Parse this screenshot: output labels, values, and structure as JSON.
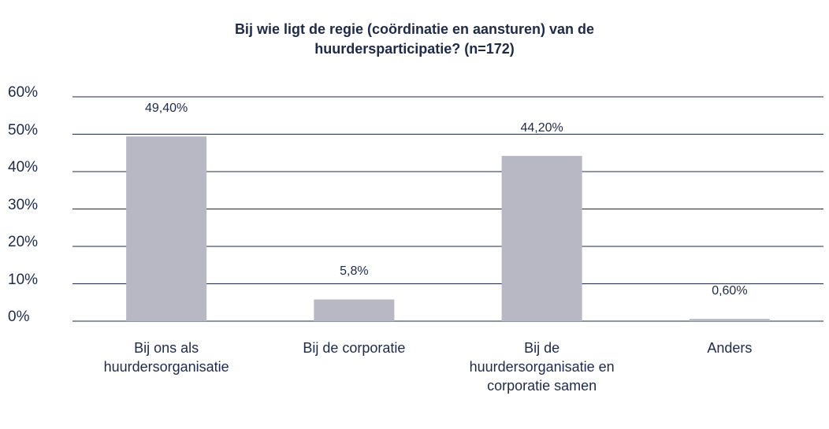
{
  "chart_data": {
    "type": "bar",
    "title": "Bij wie ligt de regie (coördinatie en aansturen) van de huurdersparticipatie? (n=172)",
    "categories": [
      "Bij ons als huurdersorganisatie",
      "Bij de corporatie",
      "Bij de huurdersorganisatie en corporatie samen",
      "Anders"
    ],
    "values": [
      49.4,
      5.8,
      44.2,
      0.6
    ],
    "value_labels": [
      "49,40%",
      "5,8%",
      "44,20%",
      "0,60%"
    ],
    "color": "#b8b8c4",
    "ylim": [
      0,
      60
    ],
    "yticks": [
      {
        "value": 0,
        "label": "0%"
      },
      {
        "value": 10,
        "label": "10%"
      },
      {
        "value": 20,
        "label": "20%"
      },
      {
        "value": 30,
        "label": "30%"
      },
      {
        "value": 40,
        "label": "40%"
      },
      {
        "value": 50,
        "label": "50%"
      },
      {
        "value": 60,
        "label": "60%"
      }
    ],
    "grid": true
  }
}
